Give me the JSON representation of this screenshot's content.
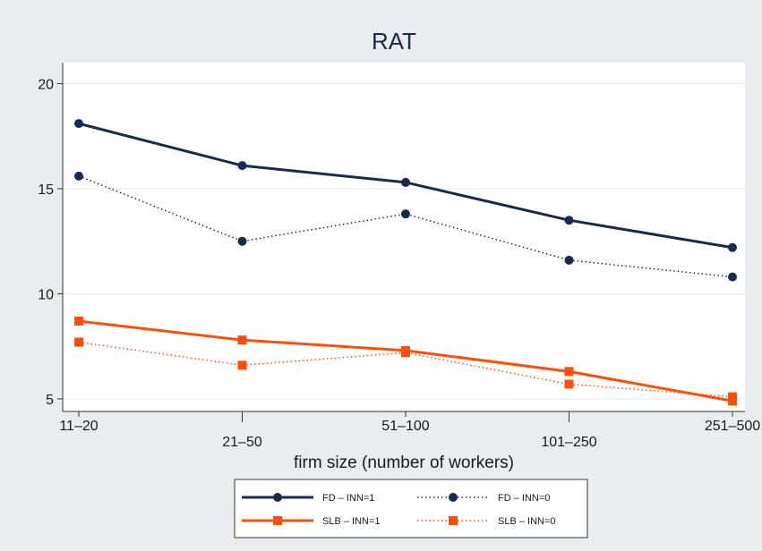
{
  "chart_data": {
    "type": "line",
    "title": "RAT",
    "xlabel": "firm size (number of workers)",
    "ylabel": "",
    "categories": [
      "11–20",
      "21–50",
      "51–100",
      "101–250",
      "251–500"
    ],
    "ylim": [
      4.4,
      21
    ],
    "yticks": [
      5,
      10,
      15,
      20
    ],
    "grid": true,
    "legend_position": "bottom",
    "series": [
      {
        "name": "FD – INN=1",
        "values": [
          18.1,
          16.1,
          15.3,
          13.5,
          12.2
        ],
        "color": "#1a2a4f",
        "marker": "circle",
        "dash": "solid"
      },
      {
        "name": "FD – INN=0",
        "values": [
          15.6,
          12.5,
          13.8,
          11.6,
          10.8
        ],
        "color": "#1a2a4f",
        "marker": "circle",
        "dash": "dotted"
      },
      {
        "name": "SLB – INN=1",
        "values": [
          8.7,
          7.8,
          7.3,
          6.3,
          4.9
        ],
        "color": "#ff4e0b",
        "marker": "square",
        "dash": "solid"
      },
      {
        "name": "SLB – INN=0",
        "values": [
          7.7,
          6.6,
          7.2,
          5.7,
          5.1
        ],
        "color": "#ff4e0b",
        "marker": "square",
        "dash": "dotted"
      }
    ]
  }
}
